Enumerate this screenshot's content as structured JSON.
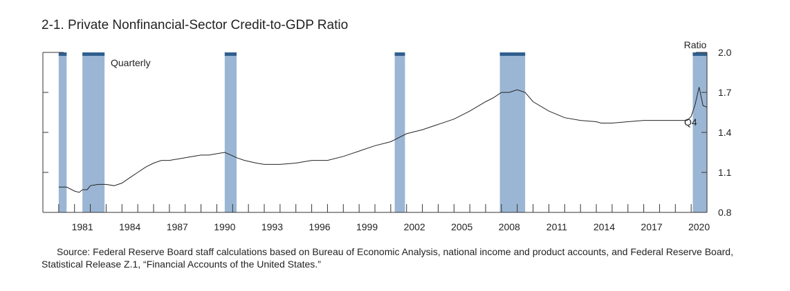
{
  "chart_data": {
    "type": "line",
    "title": "2-1. Private Nonfinancial-Sector Credit-to-GDP Ratio",
    "ylabel": "Ratio",
    "frequency_label": "Quarterly",
    "end_label": "Q4",
    "ylim": [
      0.8,
      2.0
    ],
    "xlim": [
      1979.0,
      2021.0
    ],
    "y_ticks": [
      0.8,
      1.1,
      1.4,
      1.7,
      2.0
    ],
    "y_tick_labels": [
      "0.8",
      "1.1",
      "1.4",
      "1.7",
      "2.0"
    ],
    "x_tick_years": [
      1981,
      1984,
      1987,
      1990,
      1993,
      1996,
      1999,
      2002,
      2005,
      2008,
      2011,
      2014,
      2017,
      2020
    ],
    "x_tick_labels": [
      "1981",
      "1984",
      "1987",
      "1990",
      "1993",
      "1996",
      "1999",
      "2002",
      "2005",
      "2008",
      "2011",
      "2014",
      "2017",
      "2020"
    ],
    "recessions": [
      {
        "start": 1980.0,
        "end": 1980.5
      },
      {
        "start": 1981.5,
        "end": 1982.9
      },
      {
        "start": 1990.5,
        "end": 1991.25
      },
      {
        "start": 2001.25,
        "end": 2001.9
      },
      {
        "start": 2007.9,
        "end": 2009.5
      },
      {
        "start": 2020.1,
        "end": 2021.0
      }
    ],
    "series": [
      {
        "name": "Private nonfinancial-sector credit-to-GDP ratio",
        "x": [
          1980.0,
          1980.5,
          1981.0,
          1981.3,
          1981.5,
          1981.8,
          1982.0,
          1982.5,
          1983.0,
          1983.5,
          1984.0,
          1984.5,
          1985.0,
          1985.5,
          1986.0,
          1986.5,
          1987.0,
          1987.5,
          1988.0,
          1988.5,
          1989.0,
          1989.5,
          1990.0,
          1990.5,
          1990.9,
          1991.25,
          1991.75,
          1992.5,
          1993.0,
          1994.0,
          1995.0,
          1996.0,
          1997.0,
          1998.0,
          1999.0,
          2000.0,
          2001.0,
          2001.5,
          2002.0,
          2003.0,
          2004.0,
          2005.0,
          2006.0,
          2007.0,
          2007.5,
          2008.0,
          2008.5,
          2009.0,
          2009.5,
          2010.0,
          2011.0,
          2012.0,
          2013.0,
          2014.0,
          2014.3,
          2015.0,
          2016.0,
          2017.0,
          2018.0,
          2019.0,
          2019.75,
          2020.0,
          2020.25,
          2020.5,
          2020.75,
          2021.0
        ],
        "values": [
          0.99,
          0.99,
          0.96,
          0.95,
          0.97,
          0.97,
          1.0,
          1.01,
          1.01,
          1.0,
          1.02,
          1.06,
          1.1,
          1.14,
          1.17,
          1.19,
          1.19,
          1.2,
          1.21,
          1.22,
          1.23,
          1.23,
          1.24,
          1.25,
          1.23,
          1.21,
          1.19,
          1.17,
          1.16,
          1.16,
          1.17,
          1.19,
          1.19,
          1.22,
          1.26,
          1.3,
          1.33,
          1.36,
          1.39,
          1.42,
          1.46,
          1.5,
          1.56,
          1.63,
          1.66,
          1.7,
          1.7,
          1.72,
          1.7,
          1.63,
          1.56,
          1.51,
          1.49,
          1.48,
          1.47,
          1.47,
          1.48,
          1.49,
          1.49,
          1.49,
          1.49,
          1.52,
          1.61,
          1.74,
          1.6,
          1.59
        ]
      }
    ],
    "source_note": "Source: Federal Reserve Board staff calculations based on Bureau of Economic Analysis, national income and product accounts, and Federal Reserve Board, Statistical Release Z.1, “Financial Accounts of the United States.”",
    "colors": {
      "recession_fill": "#9bb6d4",
      "recession_cap": "#2f5f8f",
      "line": "#222222",
      "axis": "#333333"
    }
  }
}
